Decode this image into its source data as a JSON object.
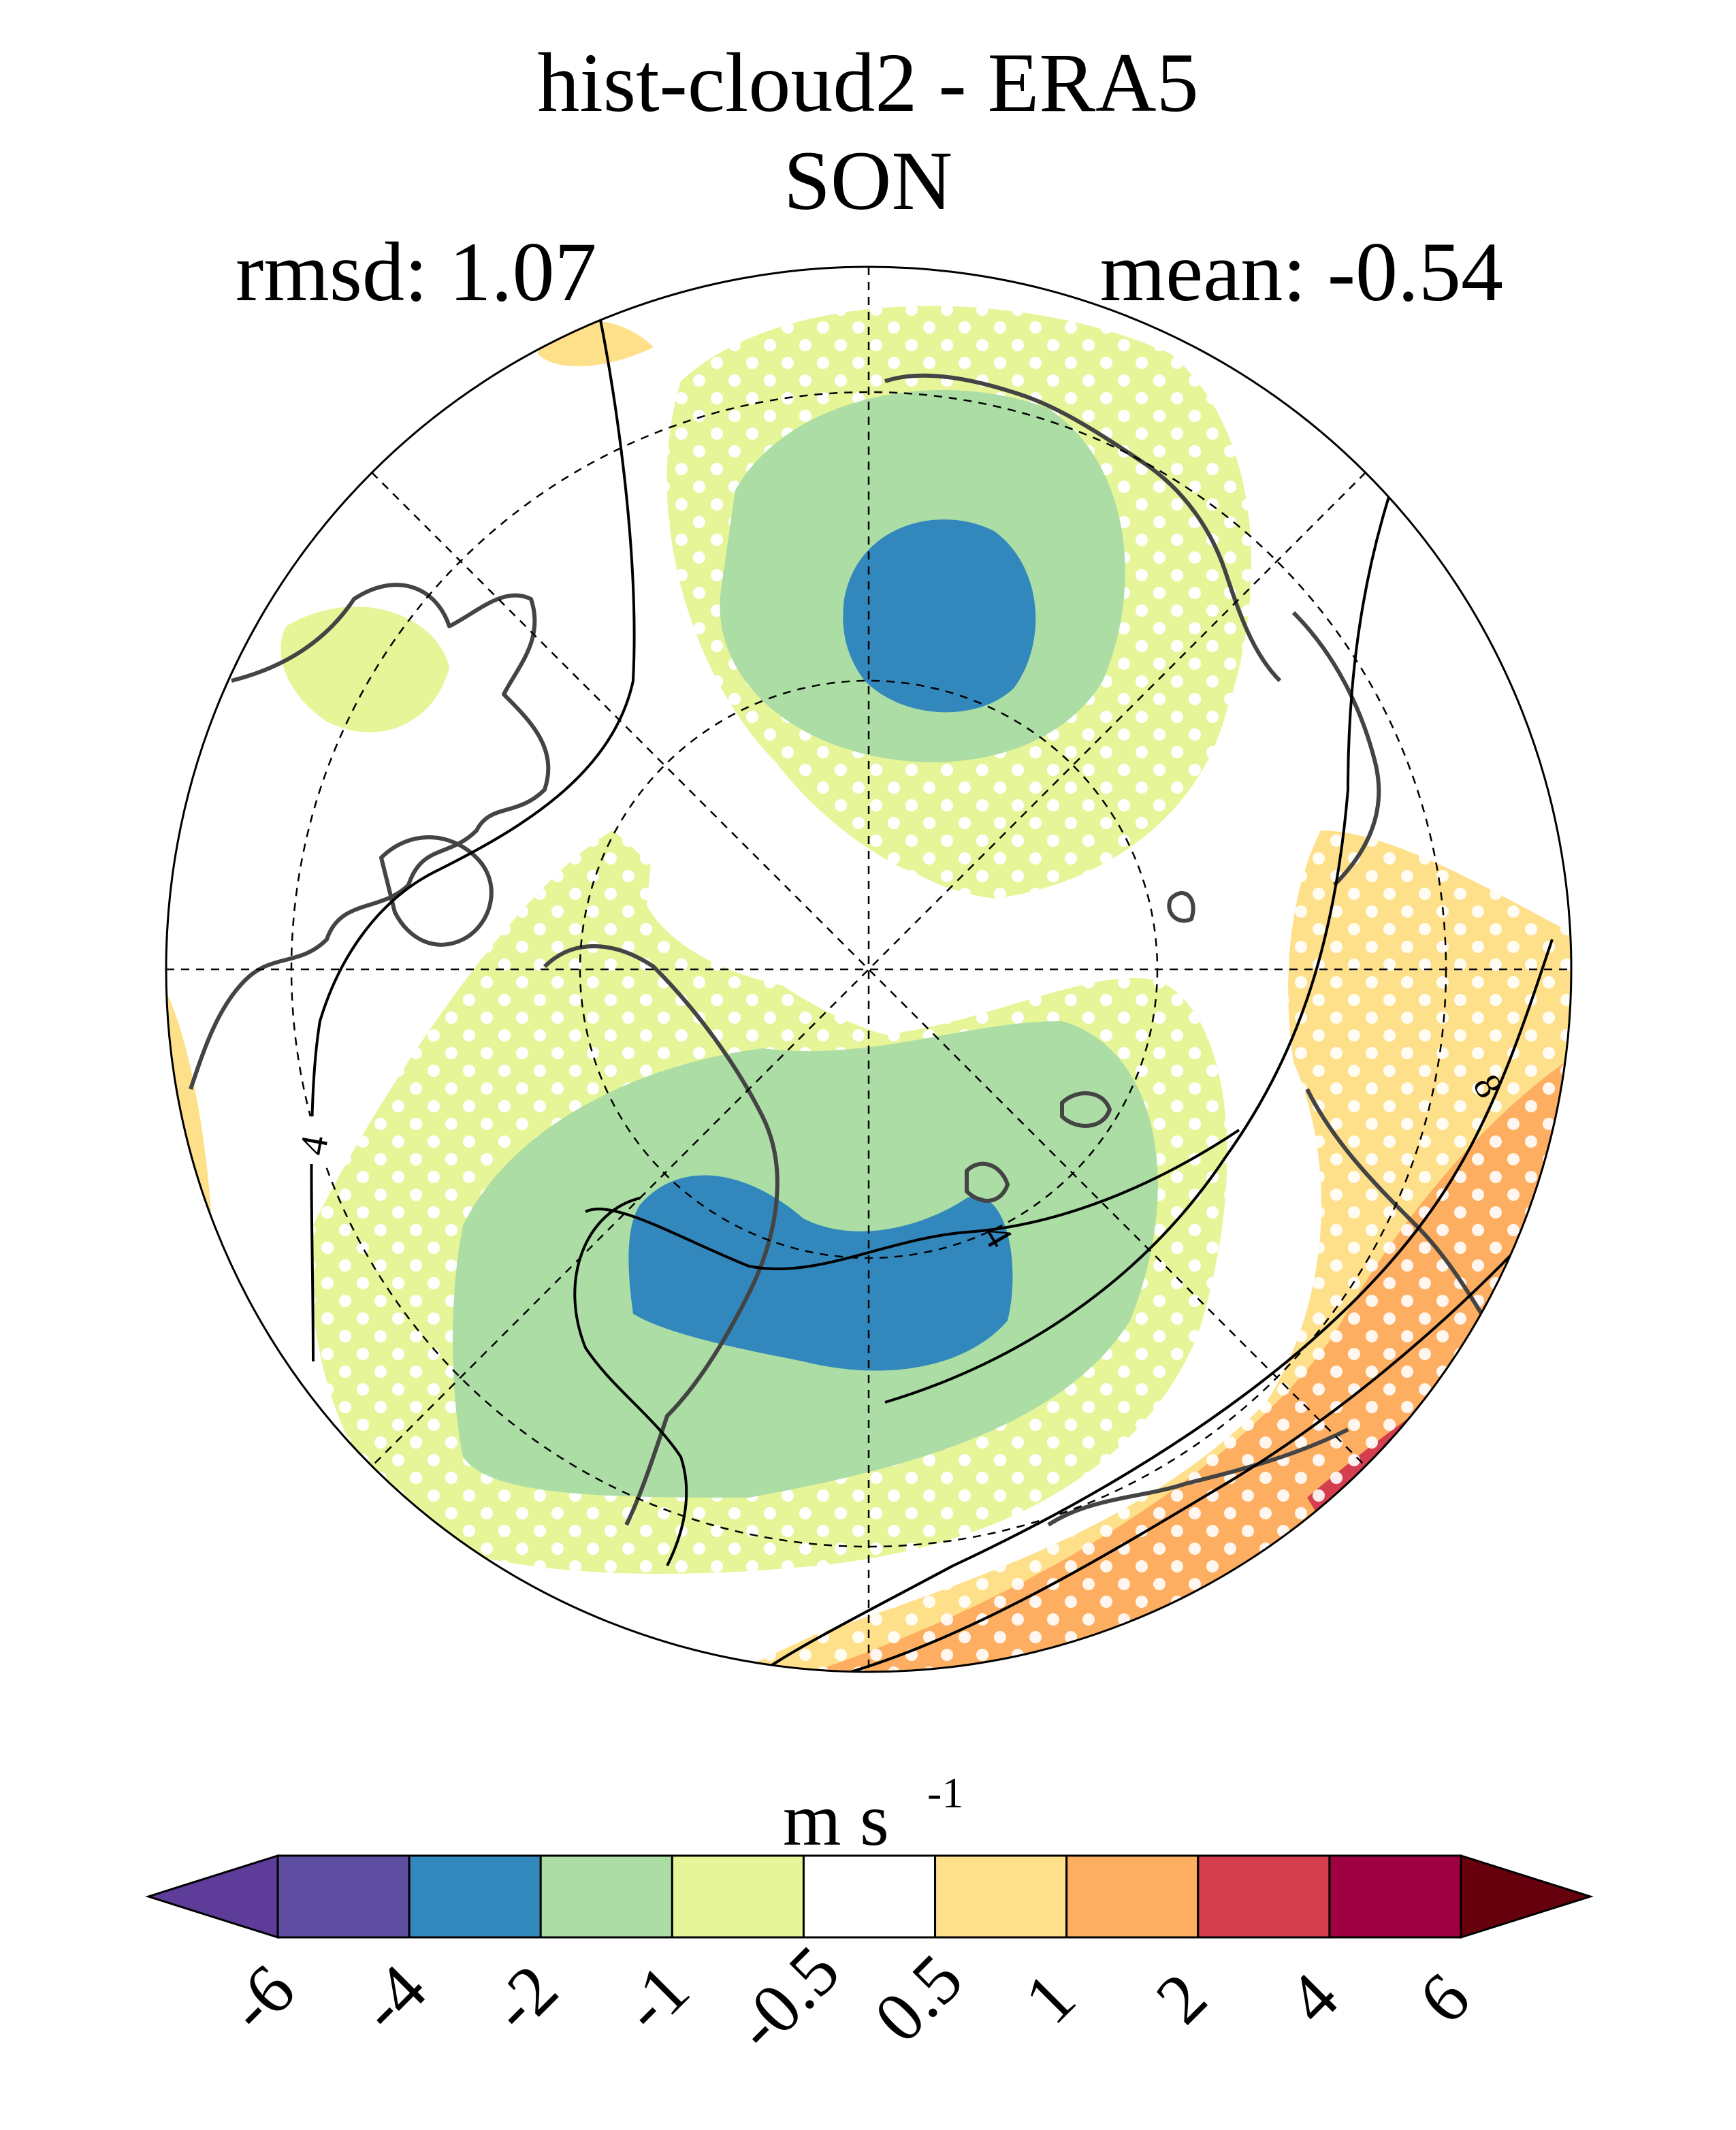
{
  "title": "hist-cloud2 - ERA5",
  "season": "SON",
  "stats": {
    "rmsd_label": "rmsd: 1.07",
    "mean_label": "mean: -0.54"
  },
  "colorbar": {
    "unit_base": "m s",
    "unit_exp": "-1",
    "colors": [
      "#5e3c99",
      "#5e4fa2",
      "#3288bd",
      "#abdda4",
      "#e6f598",
      "#ffffff",
      "#fee08b",
      "#fdae61",
      "#d53e4f",
      "#9e0142",
      "#67000d"
    ],
    "tick_labels": [
      "-6",
      "-4",
      "-2",
      "-1",
      "-0.5",
      "0.5",
      "1",
      "2",
      "4",
      "6"
    ]
  },
  "contour_labels": [
    "4",
    "4",
    "8"
  ],
  "map_colors": {
    "land_outline": "#444444",
    "stipple": "#ffffff"
  }
}
